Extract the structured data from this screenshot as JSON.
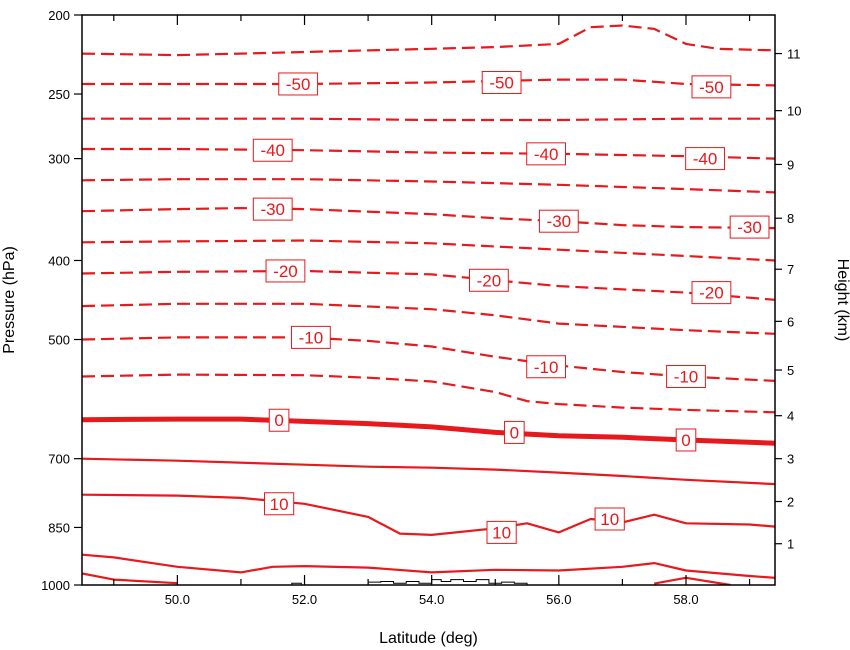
{
  "chart_data": {
    "type": "line",
    "title": "",
    "xlabel": "Latitude (deg)",
    "ylabel": "Pressure (hPa)",
    "y2label": "Height (km)",
    "xlim": [
      48.5,
      59.4
    ],
    "ylim": [
      1000,
      200
    ],
    "yscale": "log",
    "x_ticks": [
      {
        "value": 50,
        "label": "50.0"
      },
      {
        "value": 52,
        "label": "52.0"
      },
      {
        "value": 54,
        "label": "54.0"
      },
      {
        "value": 56,
        "label": "56.0"
      },
      {
        "value": 58,
        "label": "58.0"
      }
    ],
    "y_ticks": [
      {
        "value": 200,
        "label": "200"
      },
      {
        "value": 250,
        "label": "250"
      },
      {
        "value": 300,
        "label": "300"
      },
      {
        "value": 400,
        "label": "400"
      },
      {
        "value": 500,
        "label": "500"
      },
      {
        "value": 700,
        "label": "700"
      },
      {
        "value": 850,
        "label": "850"
      },
      {
        "value": 1000,
        "label": "1000"
      }
    ],
    "y2_ticks": [
      {
        "value": 1,
        "label": "1"
      },
      {
        "value": 2,
        "label": "2"
      },
      {
        "value": 3,
        "label": "3"
      },
      {
        "value": 4,
        "label": "4"
      },
      {
        "value": 5,
        "label": "5"
      },
      {
        "value": 6,
        "label": "6"
      },
      {
        "value": 7,
        "label": "7"
      },
      {
        "value": 8,
        "label": "8"
      },
      {
        "value": 9,
        "label": "9"
      },
      {
        "value": 10,
        "label": "10"
      },
      {
        "value": 11,
        "label": "11"
      }
    ],
    "y2_pressure_at_km": [
      [
        1,
        890
      ],
      [
        2,
        790
      ],
      [
        3,
        700
      ],
      [
        4,
        620
      ],
      [
        5,
        545
      ],
      [
        6,
        475
      ],
      [
        7,
        410
      ],
      [
        8,
        355
      ],
      [
        9,
        305
      ],
      [
        10,
        262
      ],
      [
        11,
        223
      ]
    ],
    "line_color": "#e8191d",
    "contour_interval": 5,
    "series": [
      {
        "level": -55,
        "style": "dashed",
        "points": [
          [
            48.5,
            223
          ],
          [
            50,
            224
          ],
          [
            51,
            223
          ],
          [
            52,
            222
          ],
          [
            53,
            221
          ],
          [
            54,
            220
          ],
          [
            55,
            219
          ],
          [
            56,
            217
          ],
          [
            56.5,
            207
          ],
          [
            57,
            206
          ],
          [
            57.5,
            208
          ],
          [
            58,
            217
          ],
          [
            58.5,
            220
          ],
          [
            59.4,
            221
          ]
        ]
      },
      {
        "level": -50,
        "style": "dashed",
        "points": [
          [
            48.5,
            243
          ],
          [
            50,
            243
          ],
          [
            52,
            243
          ],
          [
            54,
            242
          ],
          [
            55,
            241
          ],
          [
            56,
            240
          ],
          [
            57,
            240
          ],
          [
            58,
            243
          ],
          [
            59.4,
            244
          ]
        ]
      },
      {
        "level": -45,
        "style": "dashed",
        "points": [
          [
            48.5,
            268
          ],
          [
            50,
            268
          ],
          [
            52,
            268
          ],
          [
            54,
            269
          ],
          [
            56,
            269
          ],
          [
            58,
            268
          ],
          [
            59.4,
            268
          ]
        ]
      },
      {
        "level": -40,
        "style": "dashed",
        "points": [
          [
            48.5,
            292
          ],
          [
            50,
            292
          ],
          [
            52,
            293
          ],
          [
            54,
            295
          ],
          [
            56,
            296
          ],
          [
            57,
            297
          ],
          [
            58,
            298
          ],
          [
            59.4,
            300
          ]
        ]
      },
      {
        "level": -35,
        "style": "dashed",
        "points": [
          [
            48.5,
            319
          ],
          [
            50,
            318
          ],
          [
            52,
            318
          ],
          [
            54,
            320
          ],
          [
            56,
            323
          ],
          [
            58,
            327
          ],
          [
            59.4,
            330
          ]
        ]
      },
      {
        "level": -30,
        "style": "dashed",
        "points": [
          [
            48.5,
            348
          ],
          [
            50,
            346
          ],
          [
            51,
            345
          ],
          [
            52,
            346
          ],
          [
            54,
            351
          ],
          [
            55,
            355
          ],
          [
            56,
            358
          ],
          [
            57,
            362
          ],
          [
            58,
            364
          ],
          [
            59.4,
            365
          ]
        ]
      },
      {
        "level": -25,
        "style": "dashed",
        "points": [
          [
            48.5,
            380
          ],
          [
            50,
            379
          ],
          [
            52,
            378
          ],
          [
            54,
            381
          ],
          [
            56,
            388
          ],
          [
            58,
            395
          ],
          [
            59.4,
            400
          ]
        ]
      },
      {
        "level": -20,
        "style": "dashed",
        "points": [
          [
            48.5,
            415
          ],
          [
            50,
            413
          ],
          [
            52,
            412
          ],
          [
            54,
            416
          ],
          [
            55,
            423
          ],
          [
            56,
            430
          ],
          [
            58,
            438
          ],
          [
            59.4,
            447
          ]
        ]
      },
      {
        "level": -15,
        "style": "dashed",
        "points": [
          [
            48.5,
            455
          ],
          [
            50,
            452
          ],
          [
            52,
            452
          ],
          [
            54,
            459
          ],
          [
            55,
            467
          ],
          [
            56,
            478
          ],
          [
            58,
            487
          ],
          [
            59.4,
            492
          ]
        ]
      },
      {
        "level": -10,
        "style": "dashed",
        "points": [
          [
            48.5,
            500
          ],
          [
            50,
            497
          ],
          [
            52,
            497
          ],
          [
            53,
            502
          ],
          [
            54,
            510
          ],
          [
            55,
            525
          ],
          [
            56,
            538
          ],
          [
            57,
            548
          ],
          [
            58,
            555
          ],
          [
            59.4,
            562
          ]
        ]
      },
      {
        "level": -5,
        "style": "dashed",
        "points": [
          [
            48.5,
            555
          ],
          [
            50,
            552
          ],
          [
            52,
            553
          ],
          [
            53,
            557
          ],
          [
            54,
            563
          ],
          [
            55,
            580
          ],
          [
            55.5,
            595
          ],
          [
            56,
            600
          ],
          [
            57,
            606
          ],
          [
            58,
            610
          ],
          [
            59.4,
            614
          ]
        ]
      },
      {
        "level": 0,
        "style": "bold",
        "points": [
          [
            48.5,
            627
          ],
          [
            50,
            626
          ],
          [
            51,
            626
          ],
          [
            52,
            630
          ],
          [
            53,
            634
          ],
          [
            54,
            640
          ],
          [
            55,
            650
          ],
          [
            56,
            656
          ],
          [
            57,
            659
          ],
          [
            58,
            664
          ],
          [
            59.4,
            670
          ]
        ]
      },
      {
        "level": 5,
        "style": "solid",
        "points": [
          [
            48.5,
            700
          ],
          [
            50,
            704
          ],
          [
            52,
            712
          ],
          [
            53,
            716
          ],
          [
            54,
            718
          ],
          [
            55,
            722
          ],
          [
            56,
            728
          ],
          [
            57,
            735
          ],
          [
            58,
            743
          ],
          [
            59.4,
            752
          ]
        ]
      },
      {
        "level": 10,
        "style": "solid",
        "points": [
          [
            48.5,
            775
          ],
          [
            50,
            777
          ],
          [
            51,
            782
          ],
          [
            52,
            795
          ],
          [
            53,
            825
          ],
          [
            53.5,
            865
          ],
          [
            54,
            868
          ],
          [
            55,
            852
          ],
          [
            55.5,
            840
          ],
          [
            56,
            862
          ],
          [
            56.5,
            830
          ],
          [
            57,
            838
          ],
          [
            57.5,
            820
          ],
          [
            58,
            840
          ],
          [
            59,
            843
          ],
          [
            59.4,
            848
          ]
        ]
      },
      {
        "level": 15,
        "style": "solid",
        "points": [
          [
            48.5,
            918
          ],
          [
            49,
            925
          ],
          [
            50,
            950
          ],
          [
            51,
            965
          ],
          [
            51.5,
            950
          ],
          [
            52,
            948
          ],
          [
            53,
            952
          ],
          [
            54,
            965
          ],
          [
            55,
            958
          ],
          [
            56,
            960
          ],
          [
            57,
            950
          ],
          [
            57.5,
            940
          ],
          [
            58,
            960
          ],
          [
            59,
            975
          ],
          [
            59.4,
            980
          ]
        ]
      },
      {
        "level": 20,
        "style": "solid",
        "points": [
          [
            48.5,
            968
          ],
          [
            49,
            985
          ],
          [
            50,
            995
          ]
        ]
      },
      {
        "level": 20,
        "style": "solid",
        "points": [
          [
            57.5,
            996
          ],
          [
            58,
            980
          ],
          [
            58.7,
            1000
          ]
        ]
      }
    ],
    "contour_labels": [
      {
        "text": "-50",
        "x": 51.9,
        "p": 243
      },
      {
        "text": "-50",
        "x": 55.1,
        "p": 242
      },
      {
        "text": "-50",
        "x": 58.4,
        "p": 245
      },
      {
        "text": "-40",
        "x": 51.5,
        "p": 293
      },
      {
        "text": "-40",
        "x": 55.8,
        "p": 296
      },
      {
        "text": "-40",
        "x": 58.3,
        "p": 300
      },
      {
        "text": "-30",
        "x": 51.5,
        "p": 346
      },
      {
        "text": "-30",
        "x": 56.0,
        "p": 358
      },
      {
        "text": "-30",
        "x": 59.0,
        "p": 364
      },
      {
        "text": "-20",
        "x": 51.7,
        "p": 412
      },
      {
        "text": "-20",
        "x": 54.9,
        "p": 423
      },
      {
        "text": "-20",
        "x": 58.4,
        "p": 438
      },
      {
        "text": "-10",
        "x": 52.1,
        "p": 497
      },
      {
        "text": "-10",
        "x": 55.8,
        "p": 540
      },
      {
        "text": "-10",
        "x": 58.0,
        "p": 555
      },
      {
        "text": "0",
        "x": 51.6,
        "p": 628
      },
      {
        "text": "0",
        "x": 55.3,
        "p": 650
      },
      {
        "text": "0",
        "x": 58.0,
        "p": 664
      },
      {
        "text": "10",
        "x": 51.6,
        "p": 795
      },
      {
        "text": "10",
        "x": 55.1,
        "p": 862
      },
      {
        "text": "10",
        "x": 56.8,
        "p": 830
      }
    ],
    "terrain": {
      "color": "#000000",
      "points": [
        [
          51.8,
          1000
        ],
        [
          51.8,
          995
        ],
        [
          51.95,
          995
        ],
        [
          51.95,
          1000
        ],
        [
          53.0,
          1000
        ],
        [
          53.0,
          992
        ],
        [
          53.2,
          992
        ],
        [
          53.2,
          990
        ],
        [
          53.4,
          990
        ],
        [
          53.4,
          995
        ],
        [
          53.6,
          995
        ],
        [
          53.6,
          990
        ],
        [
          53.8,
          990
        ],
        [
          53.8,
          995
        ],
        [
          54.0,
          995
        ],
        [
          54.0,
          985
        ],
        [
          54.15,
          985
        ],
        [
          54.15,
          990
        ],
        [
          54.3,
          990
        ],
        [
          54.3,
          985
        ],
        [
          54.5,
          985
        ],
        [
          54.5,
          990
        ],
        [
          54.7,
          990
        ],
        [
          54.7,
          985
        ],
        [
          54.9,
          985
        ],
        [
          54.9,
          995
        ],
        [
          55.1,
          995
        ],
        [
          55.1,
          992
        ],
        [
          55.3,
          992
        ],
        [
          55.3,
          995
        ],
        [
          55.5,
          995
        ],
        [
          55.5,
          1000
        ]
      ]
    }
  }
}
